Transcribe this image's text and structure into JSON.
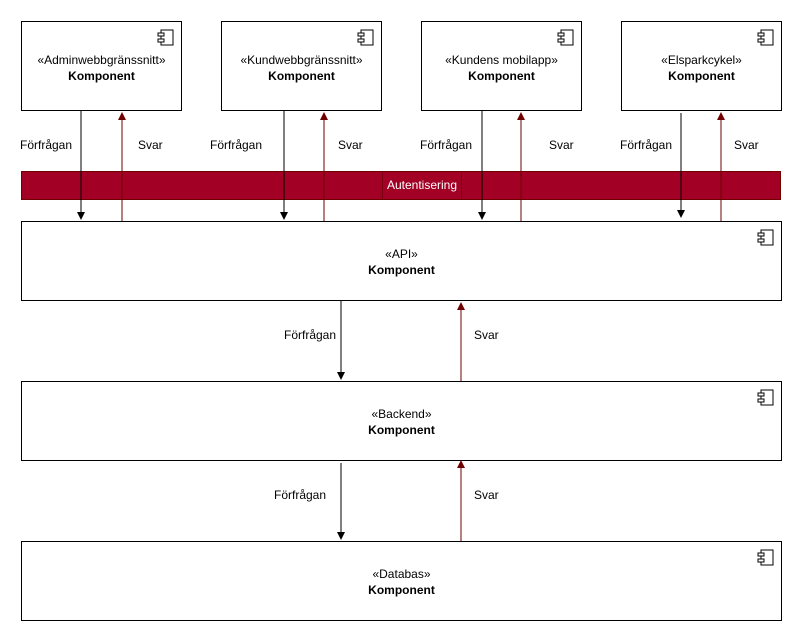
{
  "colors": {
    "auth_band": "#a20025",
    "response_arrow": "#6f0000",
    "request_arrow": "#000000"
  },
  "clients": [
    {
      "stereotype": "«Adminwebbgränssnitt»",
      "name": "Komponent"
    },
    {
      "stereotype": "«Kundwebbgränssnitt»",
      "name": "Komponent"
    },
    {
      "stereotype": "«Kundens mobilapp»",
      "name": "Komponent"
    },
    {
      "stereotype": "«Elsparkcykel»",
      "name": "Komponent"
    }
  ],
  "auth_band": {
    "label": "Autentisering"
  },
  "layers": [
    {
      "stereotype": "«API»",
      "name": "Komponent"
    },
    {
      "stereotype": "«Backend»",
      "name": "Komponent"
    },
    {
      "stereotype": "«Databas»",
      "name": "Komponent"
    }
  ],
  "edge_labels": {
    "request": "Förfrågan",
    "response": "Svar"
  },
  "icons": {
    "component": "component-icon"
  }
}
